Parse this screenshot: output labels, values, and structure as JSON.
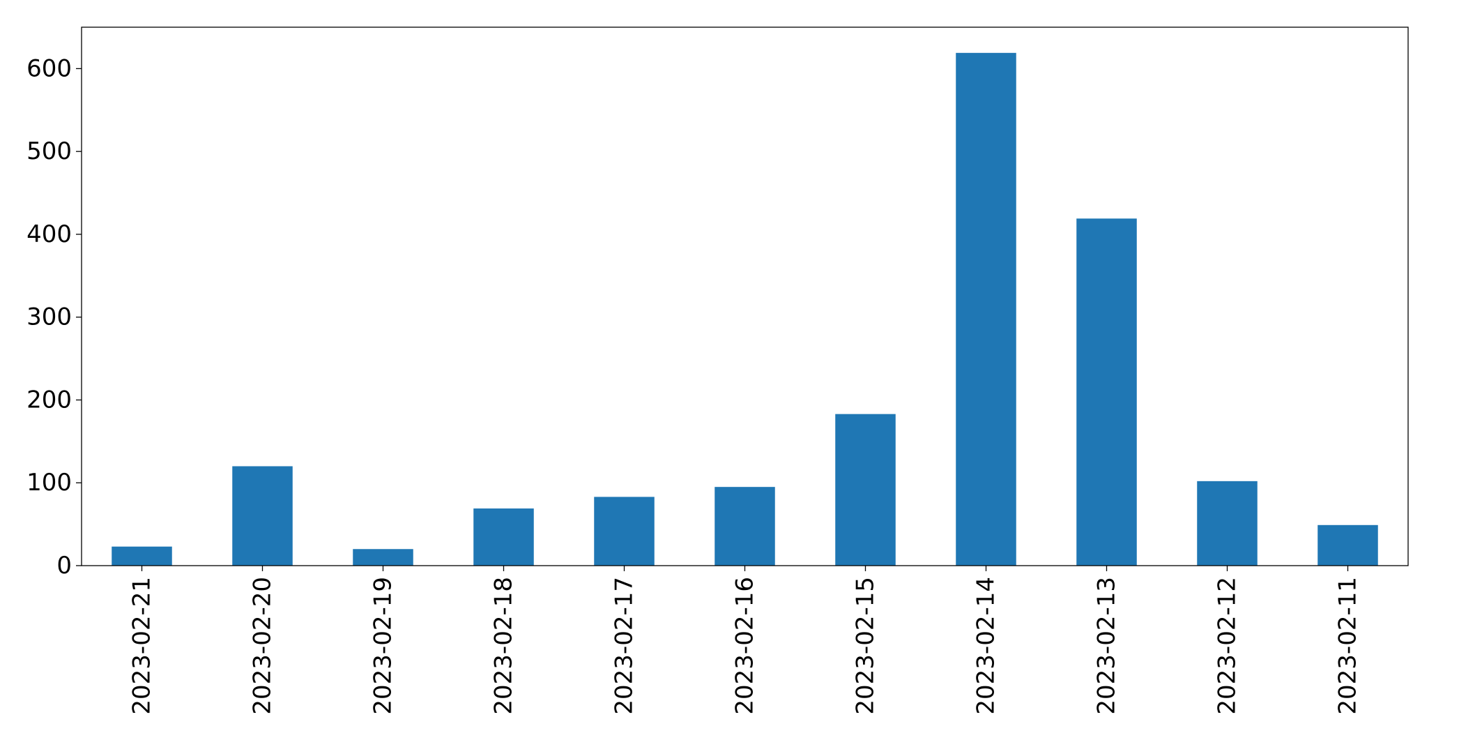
{
  "chart_data": {
    "type": "bar",
    "title": "",
    "xlabel": "",
    "ylabel": "",
    "categories": [
      "2023-02-21",
      "2023-02-20",
      "2023-02-19",
      "2023-02-18",
      "2023-02-17",
      "2023-02-16",
      "2023-02-15",
      "2023-02-14",
      "2023-02-13",
      "2023-02-12",
      "2023-02-11"
    ],
    "values": [
      23,
      120,
      20,
      69,
      83,
      95,
      183,
      619,
      419,
      102,
      49
    ],
    "ylim": [
      0,
      650
    ],
    "yticks": [
      0,
      100,
      200,
      300,
      400,
      500,
      600
    ],
    "grid": false,
    "bar_color": "#1f77b4"
  }
}
